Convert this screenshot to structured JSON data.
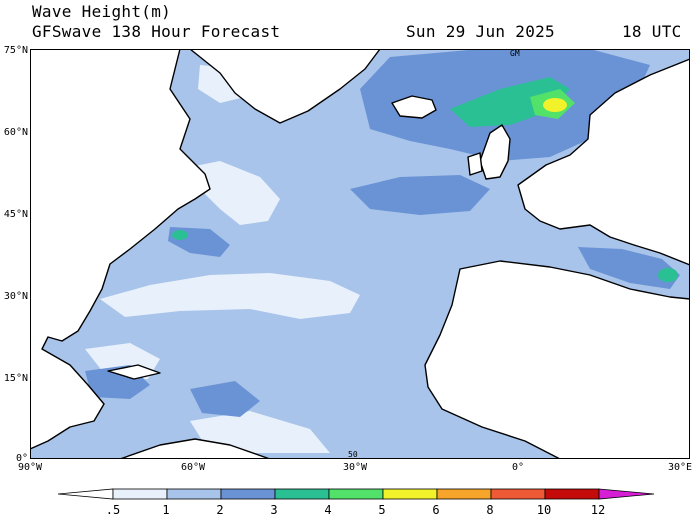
{
  "header": {
    "title": "Wave Height(m)",
    "model": "GFSwave 138 Hour Forecast",
    "date": "Sun 29 Jun 2025",
    "time": "18 UTC"
  },
  "axes": {
    "lat_labels": [
      "75°N",
      "60°N",
      "45°N",
      "30°N",
      "15°N",
      "0°"
    ],
    "lon_labels": [
      "90°W",
      "60°W",
      "30°W",
      "0°",
      "30°E"
    ]
  },
  "map_labels": {
    "top": "GM",
    "bottom": "50"
  },
  "legend": {
    "labels": [
      ".5",
      "1",
      "2",
      "3",
      "4",
      "5",
      "6",
      "8",
      "10",
      "12"
    ],
    "colors": [
      "#e8f1fb",
      "#a9c4ea",
      "#6a93d6",
      "#2bc094",
      "#52e26a",
      "#f2f22a",
      "#f7a42a",
      "#ef5a36",
      "#c50a0a",
      "#d61ed6"
    ]
  }
}
